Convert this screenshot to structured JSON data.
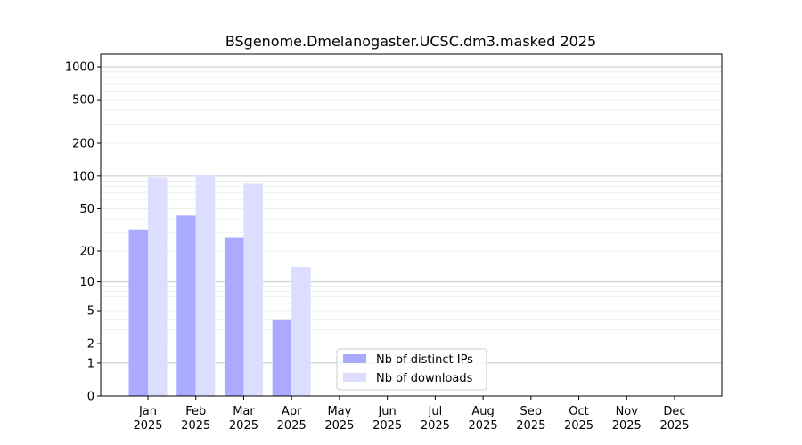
{
  "chart_data": {
    "type": "bar",
    "title": "BSgenome.Dmelanogaster.UCSC.dm3.masked 2025",
    "xlabel": "",
    "ylabel": "",
    "y_scale": "symlog",
    "grid": "horizontal",
    "legend_position": "bottom-center",
    "categories": [
      [
        "Jan",
        "2025"
      ],
      [
        "Feb",
        "2025"
      ],
      [
        "Mar",
        "2025"
      ],
      [
        "Apr",
        "2025"
      ],
      [
        "May",
        "2025"
      ],
      [
        "Jun",
        "2025"
      ],
      [
        "Jul",
        "2025"
      ],
      [
        "Aug",
        "2025"
      ],
      [
        "Sep",
        "2025"
      ],
      [
        "Oct",
        "2025"
      ],
      [
        "Nov",
        "2025"
      ],
      [
        "Dec",
        "2025"
      ]
    ],
    "y_ticks": [
      0,
      1,
      2,
      5,
      10,
      20,
      50,
      100,
      200,
      500,
      1000
    ],
    "y_tick_labels": [
      "0",
      "1",
      "2",
      "5",
      "10",
      "20",
      "50",
      "100",
      "200",
      "500",
      "1000"
    ],
    "series": [
      {
        "name": "Nb of distinct IPs",
        "color": "#aaaaff",
        "values": [
          32,
          43,
          27,
          4,
          0,
          0,
          0,
          0,
          0,
          0,
          0,
          0
        ]
      },
      {
        "name": "Nb of downloads",
        "color": "#ddddff",
        "values": [
          97,
          102,
          85,
          14,
          0,
          0,
          0,
          0,
          0,
          0,
          0,
          0
        ]
      }
    ]
  }
}
